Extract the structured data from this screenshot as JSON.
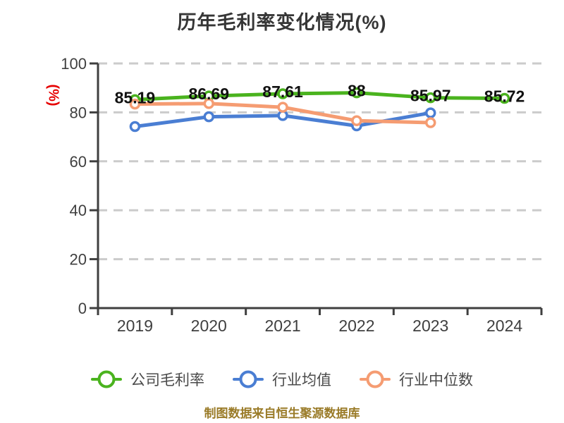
{
  "caption": "制图数据来自恒生聚源数据库",
  "colors": {
    "company": "#4ab31e",
    "industry_avg": "#4a7ed3",
    "industry_median": "#f59c72",
    "grid": "#cbcbcb",
    "axis": "#3f3f3f",
    "tick_label": "#3f3f3f",
    "data_label": "#111111",
    "title": "#363636",
    "legend_text": "#4a4a4a",
    "caption": "#9a7b28",
    "unit_label": "#e60000"
  },
  "chart_data": {
    "type": "line",
    "title": "历年毛利率变化情况(%)",
    "categories": [
      "2019",
      "2020",
      "2021",
      "2022",
      "2023",
      "2024"
    ],
    "series": [
      {
        "name": "公司毛利率",
        "color_key": "company",
        "values": [
          85.19,
          86.69,
          87.61,
          88,
          85.97,
          85.72
        ],
        "labels": [
          "85.19",
          "86.69",
          "87.61",
          "88",
          "85.97",
          "85.72"
        ]
      },
      {
        "name": "行业均值",
        "color_key": "industry_avg",
        "values": [
          74.2,
          78.2,
          78.7,
          74.5,
          79.8,
          null
        ]
      },
      {
        "name": "行业中位数",
        "color_key": "industry_median",
        "values": [
          83.4,
          83.6,
          82.1,
          76.6,
          75.8,
          null
        ]
      }
    ],
    "xlabel": "",
    "ylabel": "(%)",
    "ylim": [
      0,
      100
    ],
    "yticks": [
      0,
      20,
      40,
      60,
      80,
      100
    ],
    "grid": true,
    "grid_style": "dashed",
    "legend_position": "bottom",
    "marker_style": "hollow-circle"
  }
}
